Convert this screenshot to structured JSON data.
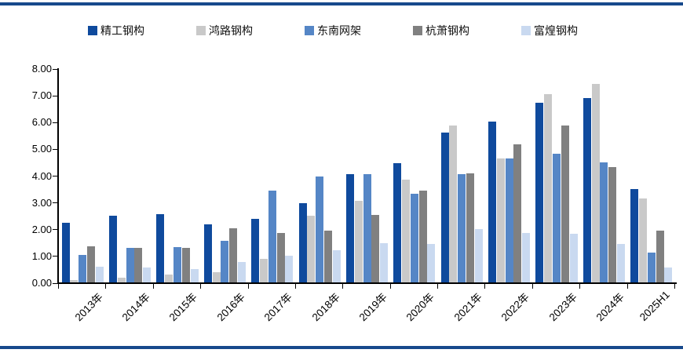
{
  "figure": {
    "background": "#ffffff",
    "top_rule_color": "#17498c",
    "bottom_rule_color": "#17498c"
  },
  "chart_data": {
    "type": "bar",
    "title": "",
    "xlabel": "",
    "ylabel": "",
    "ylim": [
      0,
      8
    ],
    "ytick_step": 1,
    "ytick_labels": [
      "0.00",
      "1.00",
      "2.00",
      "3.00",
      "4.00",
      "5.00",
      "6.00",
      "7.00",
      "8.00"
    ],
    "grid": false,
    "legend_position": "top",
    "categories": [
      "2013年",
      "2014年",
      "2015年",
      "2016年",
      "2017年",
      "2018年",
      "2019年",
      "2020年",
      "2021年",
      "2022年",
      "2023年",
      "2024年",
      "2025H1"
    ],
    "series": [
      {
        "name": "精工钢构",
        "color": "#0f4a9d",
        "values": [
          2.23,
          2.5,
          2.56,
          2.17,
          2.36,
          2.95,
          4.05,
          4.46,
          5.6,
          6.02,
          6.7,
          6.88,
          3.5
        ]
      },
      {
        "name": "鸿路钢构",
        "color": "#c9c9c9",
        "values": [
          0.1,
          0.18,
          0.28,
          0.38,
          0.87,
          2.48,
          3.05,
          3.85,
          5.87,
          4.64,
          7.02,
          7.42,
          3.14
        ]
      },
      {
        "name": "东南网架",
        "color": "#5586c6",
        "values": [
          1.03,
          1.29,
          1.31,
          1.56,
          3.43,
          3.97,
          4.03,
          3.3,
          4.03,
          4.62,
          4.8,
          4.47,
          1.1
        ]
      },
      {
        "name": "杭萧钢构",
        "color": "#808080",
        "values": [
          1.36,
          1.28,
          1.29,
          2.02,
          1.86,
          1.93,
          2.52,
          3.43,
          4.08,
          5.17,
          5.85,
          4.3,
          1.93
        ]
      },
      {
        "name": "富煌钢构",
        "color": "#c9d9f0",
        "values": [
          0.58,
          0.57,
          0.51,
          0.76,
          1.0,
          1.2,
          1.46,
          1.44,
          1.98,
          1.85,
          1.83,
          1.44,
          0.55
        ]
      }
    ]
  }
}
